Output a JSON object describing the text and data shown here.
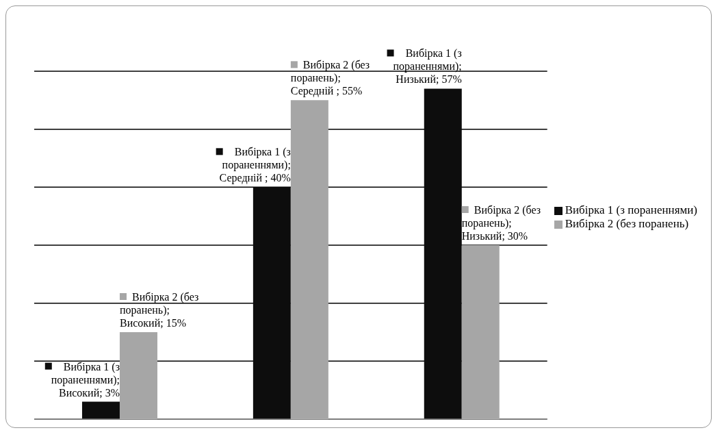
{
  "chart_data": {
    "type": "bar",
    "categories": [
      null,
      null,
      null
    ],
    "series": [
      {
        "name": "Вибірка 1 (з пораненнями)",
        "color": "#0d0d0d",
        "values": [
          3,
          40,
          57
        ],
        "value_labels": [
          "Вибірка 1 (з пораненнями); Високий; 3%",
          "Вибірка 1 (з пораненнями); Середній ; 40%",
          "Вибірка 1 (з пораненнями); Низький; 57%"
        ]
      },
      {
        "name": "Вибірка 2 (без поранень)",
        "color": "#a6a6a6",
        "values": [
          15,
          55,
          30
        ],
        "value_labels": [
          "Вибірка 2 (без поранень); Високий; 15%",
          "Вибірка 2 (без поранень); Середній ; 55%",
          "Вибірка 2 (без поранень); Низький; 30%"
        ]
      }
    ],
    "grid": "y",
    "tick_labels": false,
    "legend": "right"
  }
}
